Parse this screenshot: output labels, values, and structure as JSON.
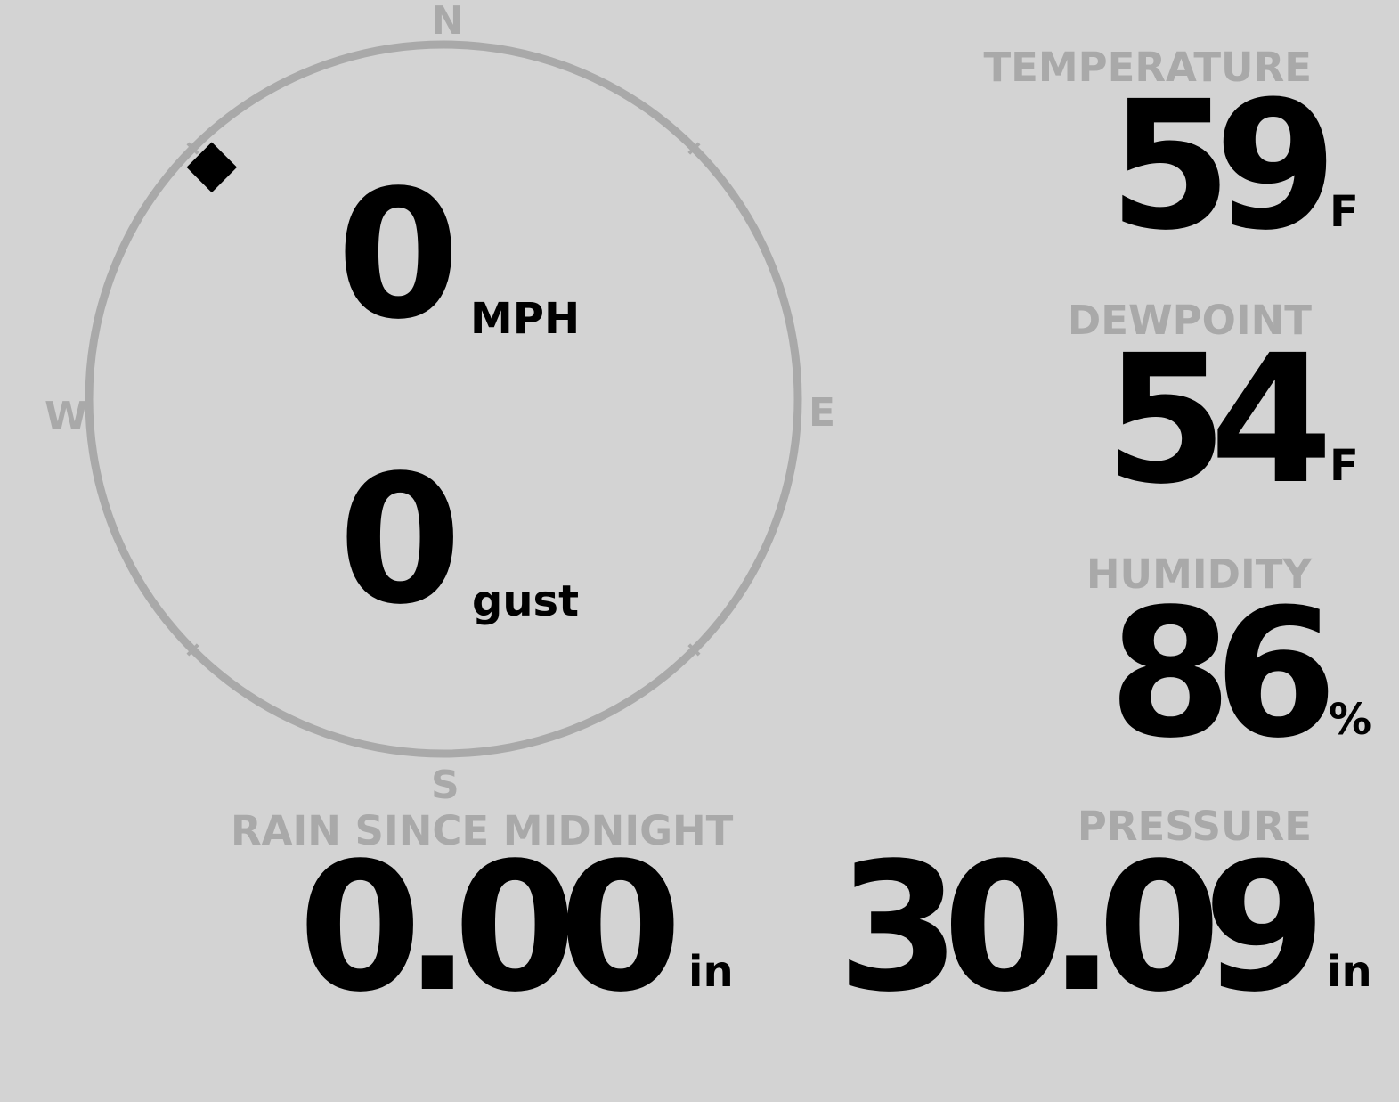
{
  "wind": {
    "speed": "0",
    "speed_unit": "MPH",
    "gust": "0",
    "gust_unit": "gust",
    "direction_deg": 315,
    "cardinals": {
      "n": "N",
      "e": "E",
      "s": "S",
      "w": "W"
    }
  },
  "temperature": {
    "label": "TEMPERATURE",
    "value": "59",
    "unit": "F"
  },
  "dewpoint": {
    "label": "DEWPOINT",
    "value": "54",
    "unit": "F"
  },
  "humidity": {
    "label": "HUMIDITY",
    "value": "86",
    "unit": "%"
  },
  "rain": {
    "label": "RAIN SINCE MIDNIGHT",
    "value": "0.00",
    "unit": "in"
  },
  "pressure": {
    "label": "PRESSURE",
    "value": "30.09",
    "unit": "in"
  },
  "colors": {
    "background": "#d3d3d3",
    "muted": "#a9a9a9",
    "text": "#000000"
  }
}
